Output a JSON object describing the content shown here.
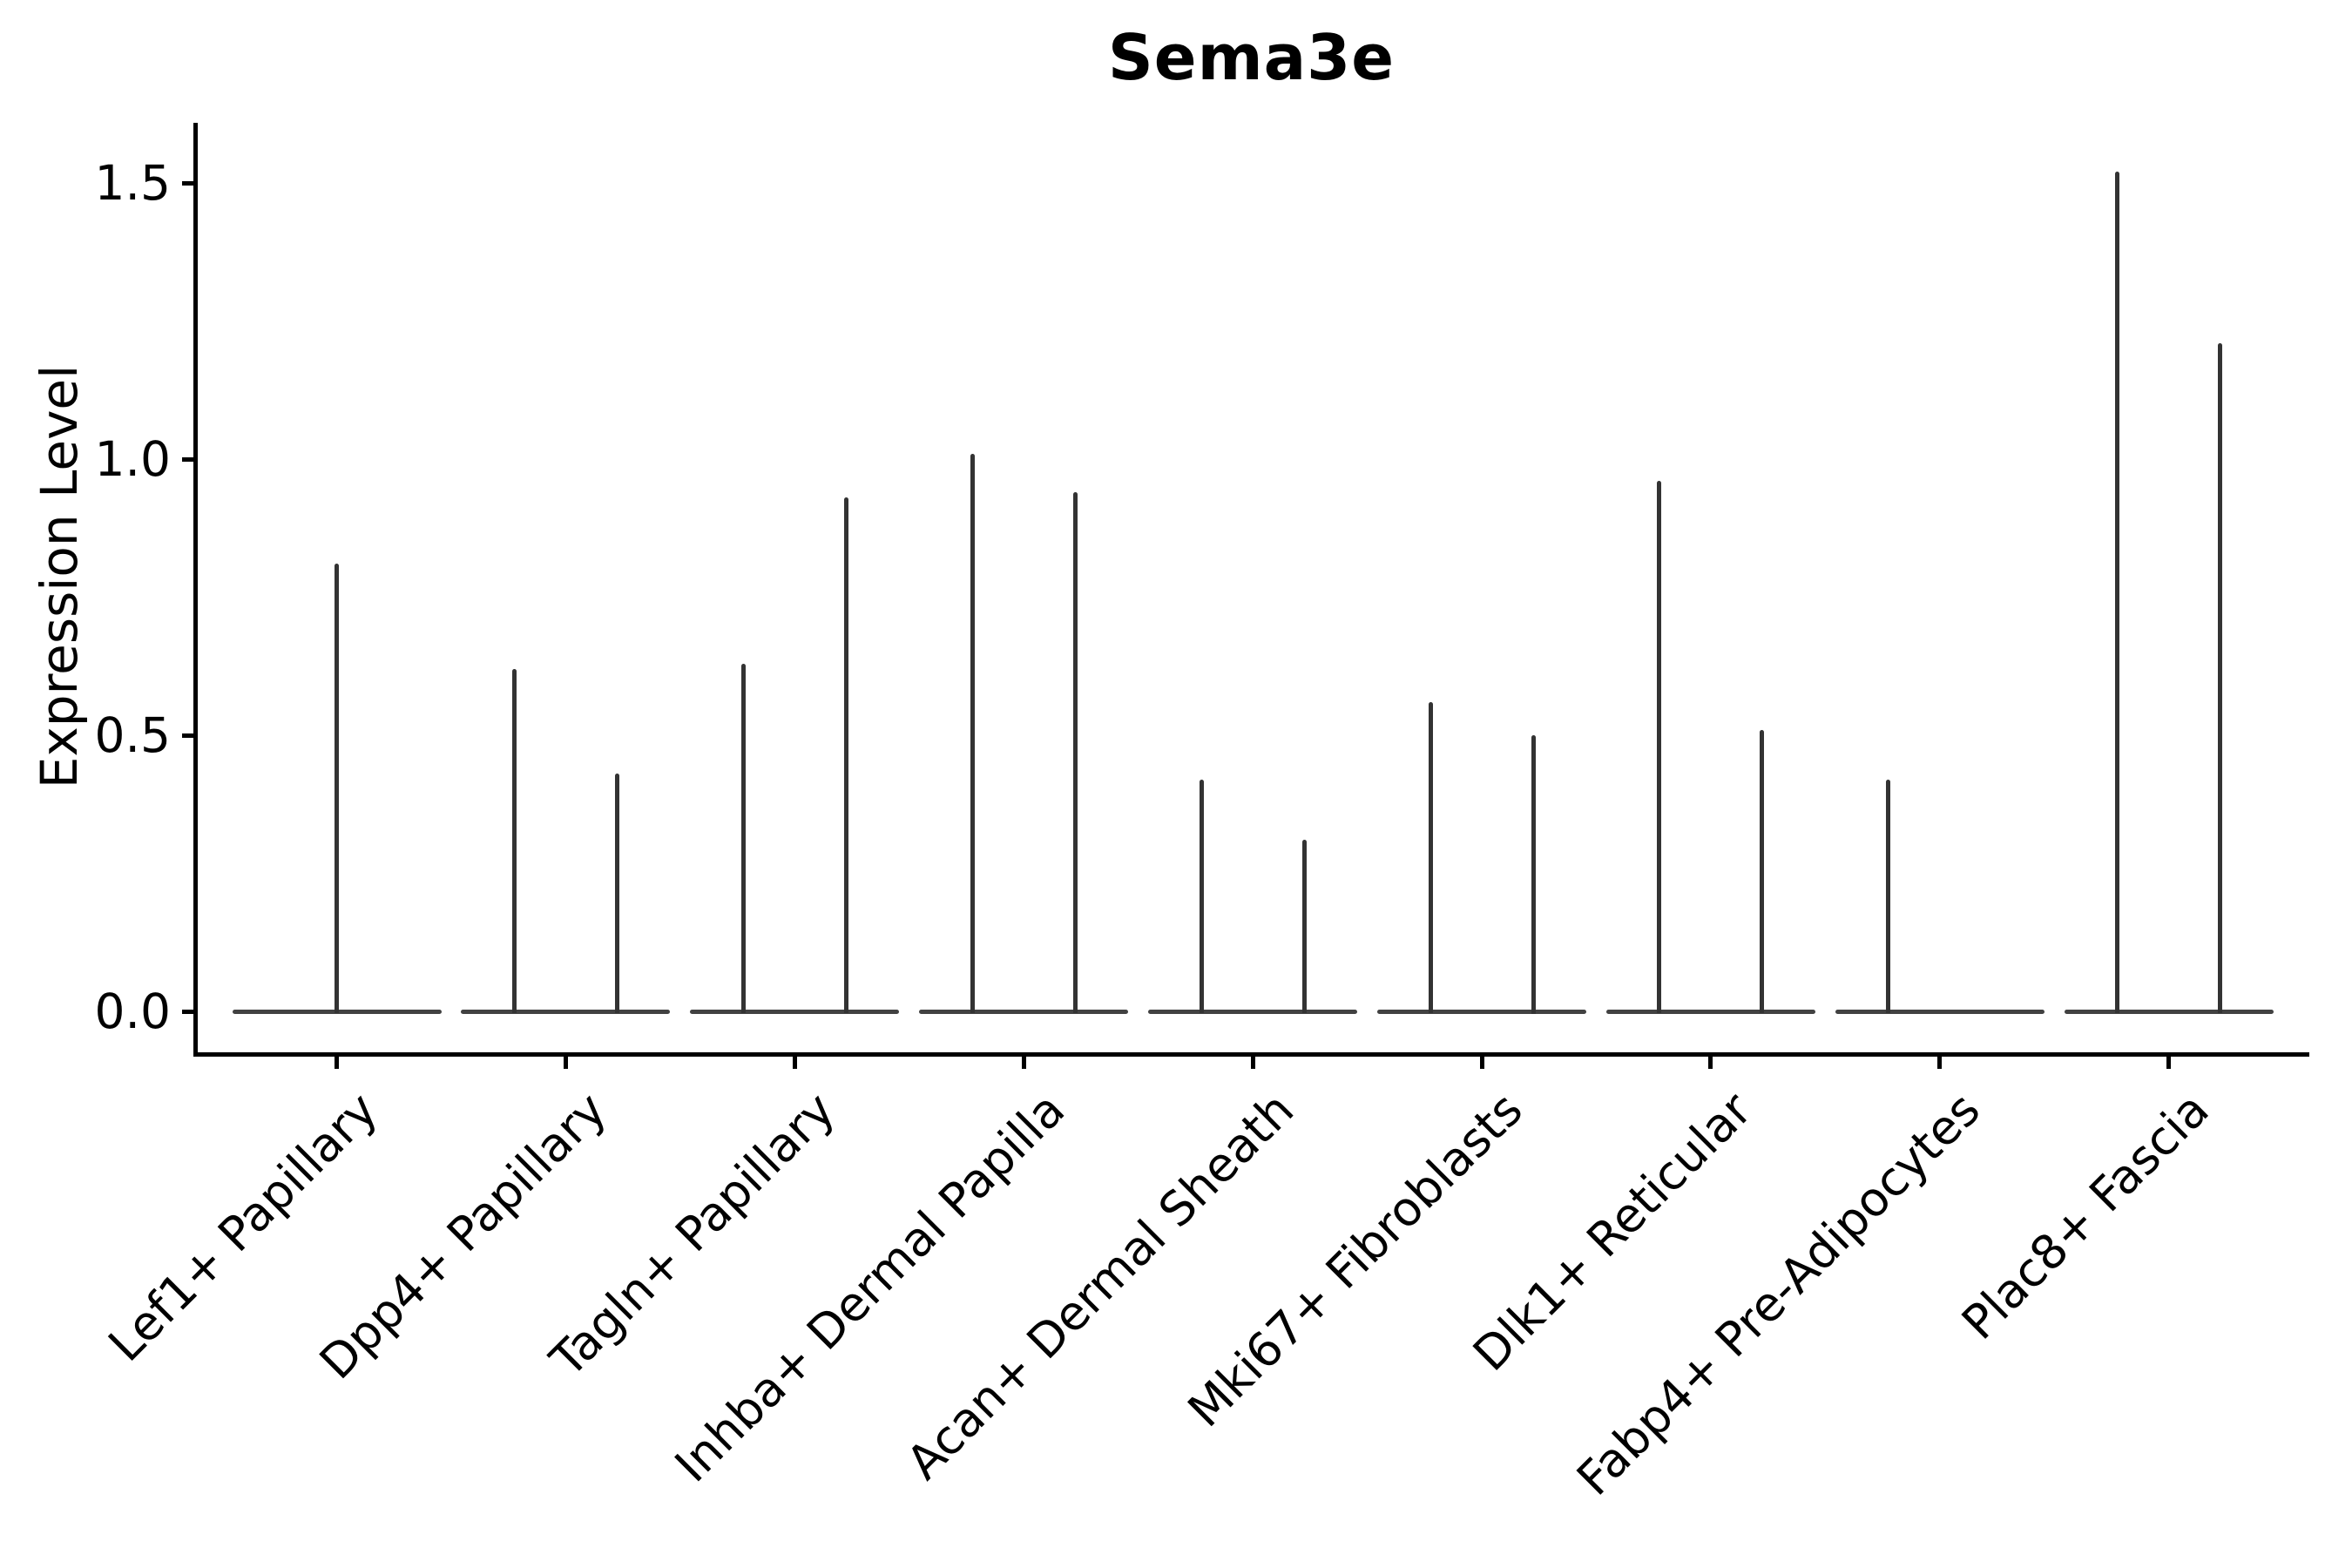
{
  "chart_data": {
    "type": "violin",
    "title": "Sema3e",
    "xlabel": "",
    "ylabel": "Expression Level",
    "ylim": [
      0,
      1.58
    ],
    "yticks": [
      0.0,
      0.5,
      1.0,
      1.5
    ],
    "ytick_labels": [
      "0.0",
      "0.5",
      "1.0",
      "1.5"
    ],
    "grid": false,
    "legend": false,
    "categories": [
      "Lef1+ Papillary",
      "Dpp4+ Papillary",
      "Tagln+ Papillary",
      "Inhba+ Dermal Papilla",
      "Acan+ Dermal Sheath",
      "Mki67+ Fibroblasts",
      "Dlk1+ Reticular",
      "Fabp4+ Pre-Adipocytes",
      "Plac8+ Fascia"
    ],
    "groups": [
      {
        "label": "Lef1+ Papillary",
        "violins": [
          {
            "pos": "center",
            "peak": 0.81
          }
        ]
      },
      {
        "label": "Dpp4+ Papillary",
        "violins": [
          {
            "pos": "left",
            "peak": 0.62
          },
          {
            "pos": "right",
            "peak": 0.43
          }
        ]
      },
      {
        "label": "Tagln+ Papillary",
        "violins": [
          {
            "pos": "left",
            "peak": 0.63
          },
          {
            "pos": "right",
            "peak": 0.93
          }
        ]
      },
      {
        "label": "Inhba+ Dermal Papilla",
        "violins": [
          {
            "pos": "left",
            "peak": 1.01
          },
          {
            "pos": "right",
            "peak": 0.94
          }
        ]
      },
      {
        "label": "Acan+ Dermal Sheath",
        "violins": [
          {
            "pos": "left",
            "peak": 0.42
          },
          {
            "pos": "right",
            "peak": 0.31
          }
        ]
      },
      {
        "label": "Mki67+ Fibroblasts",
        "violins": [
          {
            "pos": "left",
            "peak": 0.56
          },
          {
            "pos": "right",
            "peak": 0.5
          }
        ]
      },
      {
        "label": "Dlk1+ Reticular",
        "violins": [
          {
            "pos": "left",
            "peak": 0.96
          },
          {
            "pos": "right",
            "peak": 0.51
          }
        ]
      },
      {
        "label": "Fabp4+ Pre-Adipocytes",
        "violins": [
          {
            "pos": "left",
            "peak": 0.42
          }
        ]
      },
      {
        "label": "Plac8+ Fascia",
        "violins": [
          {
            "pos": "left",
            "peak": 1.52
          },
          {
            "pos": "right",
            "peak": 1.21
          }
        ]
      }
    ],
    "colors": {
      "axis": "#000000",
      "text": "#000000",
      "violin_line": "#333333",
      "violin_baseline": "#424242",
      "background": "#ffffff"
    }
  }
}
